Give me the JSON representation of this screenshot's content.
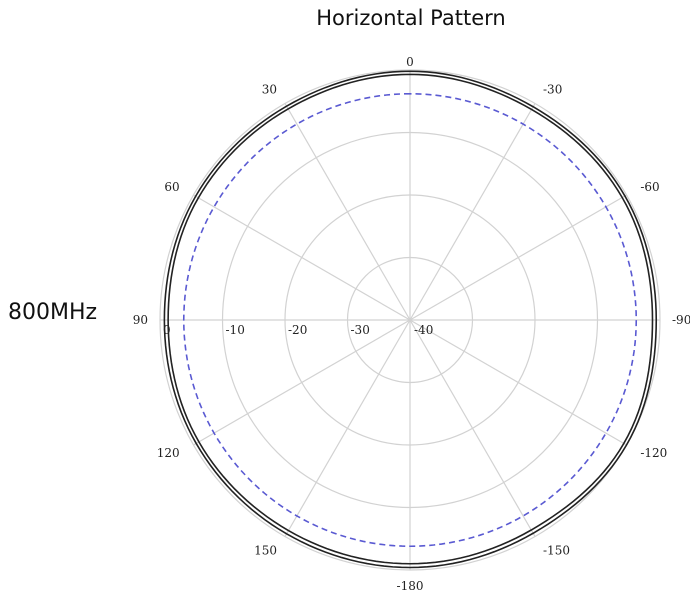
{
  "title": "Horizontal Pattern",
  "frequency_label": "800MHz",
  "chart_data": {
    "type": "polar-line",
    "title": "Horizontal Pattern",
    "radial_axis": {
      "range": [
        -40,
        0
      ],
      "rings": [
        0,
        -10,
        -20,
        -30,
        -40
      ],
      "ring_labels": [
        "0",
        "-10",
        "-20",
        "-30",
        "-40"
      ]
    },
    "angular_axis": {
      "step_deg": 30,
      "tick_labels": [
        {
          "angle": 0,
          "label": "0"
        },
        {
          "angle": -30,
          "label": "-30"
        },
        {
          "angle": -60,
          "label": "-60"
        },
        {
          "angle": -90,
          "label": "-90"
        },
        {
          "angle": -120,
          "label": "-120"
        },
        {
          "angle": -150,
          "label": "-150"
        },
        {
          "angle": 180,
          "label": "-180"
        },
        {
          "angle": 150,
          "label": "150"
        },
        {
          "angle": 120,
          "label": "120"
        },
        {
          "angle": 90,
          "label": "90"
        },
        {
          "angle": 60,
          "label": "60"
        },
        {
          "angle": 30,
          "label": "30"
        }
      ]
    },
    "grid": true,
    "series": [
      {
        "style": "solid",
        "color": "#222222",
        "angles": [
          0,
          30,
          60,
          90,
          120,
          150,
          180,
          -150,
          -120,
          -90,
          -60,
          -30
        ],
        "values": [
          -0.7,
          -1.0,
          -0.9,
          -1.3,
          -1.0,
          -1.1,
          -1.0,
          -1.2,
          -0.5,
          -1.2,
          -0.8,
          -1.1
        ]
      },
      {
        "style": "solid",
        "color": "#222222",
        "angles": [
          0,
          30,
          60,
          90,
          120,
          150,
          180,
          -150,
          -120,
          -90,
          -60,
          -30
        ],
        "values": [
          -0.2,
          -0.5,
          -0.4,
          -0.7,
          -0.5,
          -0.5,
          -0.4,
          -0.6,
          0.0,
          -0.6,
          -0.3,
          -0.6
        ]
      },
      {
        "style": "dashed",
        "color": "#5a5ad2",
        "angles": [
          0,
          30,
          60,
          90,
          120,
          150,
          180,
          -150,
          -120,
          -90,
          -60,
          -30
        ],
        "values": [
          -3.8,
          -3.8,
          -3.8,
          -3.8,
          -3.8,
          -3.8,
          -3.8,
          -3.8,
          -3.8,
          -3.8,
          -3.8,
          -3.8
        ]
      }
    ]
  }
}
